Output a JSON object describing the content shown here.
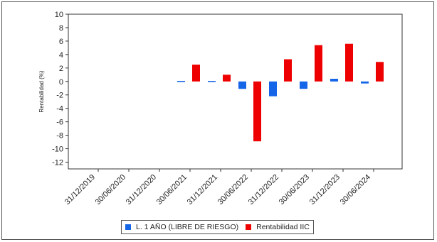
{
  "chart_data": {
    "type": "bar",
    "ylabel": "Rentabilidad (%)",
    "ylim": [
      -13,
      10
    ],
    "yticks": [
      10,
      8,
      6,
      4,
      2,
      0,
      -2,
      -4,
      -6,
      -8,
      -10,
      -12
    ],
    "categories": [
      "31/12/2019",
      "30/06/2020",
      "31/12/2020",
      "30/06/2021",
      "31/12/2021",
      "30/06/2022",
      "31/12/2022",
      "30/06/2023",
      "31/12/2023",
      "30/06/2024"
    ],
    "series": [
      {
        "name": "L. 1 AÑO (LIBRE DE RIESGO)",
        "color": "#1565e8",
        "values": [
          null,
          null,
          null,
          -0.1,
          -0.05,
          -1.1,
          -2.2,
          -1.1,
          0.4,
          -0.3
        ]
      },
      {
        "name": "Rentabilidad IIC",
        "color": "#ee0000",
        "values": [
          null,
          null,
          null,
          2.5,
          1.0,
          -8.9,
          3.3,
          5.4,
          5.6,
          2.9
        ]
      }
    ],
    "grid": false,
    "legend_position": "bottom"
  }
}
